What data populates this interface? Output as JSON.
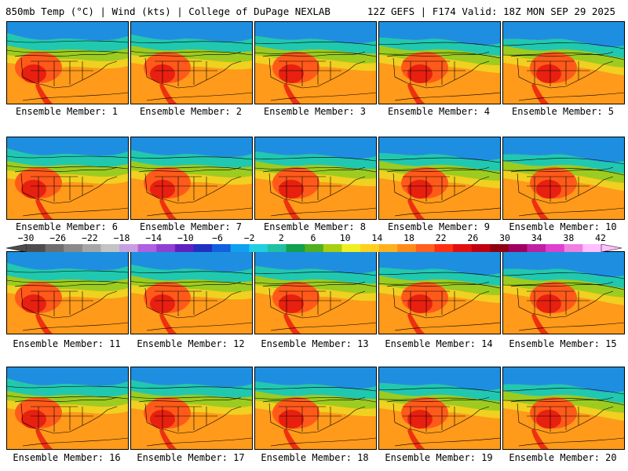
{
  "header": {
    "left": "850mb Temp (°C) | Wind (kts) | College of DuPage NEXLAB",
    "right": "12Z GEFS | F174 Valid: 18Z MON SEP 29 2025"
  },
  "label_prefix": "Ensemble Member: ",
  "members": [
    1,
    2,
    3,
    4,
    5,
    6,
    7,
    8,
    9,
    10,
    11,
    12,
    13,
    14,
    15,
    16,
    17,
    18,
    19,
    20
  ],
  "colorbar": {
    "ticks": [
      "−30",
      "−26",
      "−22",
      "−18",
      "−14",
      "−10",
      "−6",
      "−2",
      "2",
      "6",
      "10",
      "14",
      "18",
      "22",
      "26",
      "30",
      "34",
      "38",
      "42"
    ],
    "colors": [
      "#4d4d4d",
      "#6e6e6e",
      "#8a8a8a",
      "#a6a6a6",
      "#c4c4c4",
      "#c8a0e0",
      "#b060e0",
      "#9040d0",
      "#6020c0",
      "#2030c0",
      "#1060e0",
      "#10a0f0",
      "#20d0e0",
      "#20c0a0",
      "#10a050",
      "#50b020",
      "#a8d010",
      "#f0f020",
      "#ffd020",
      "#ffb020",
      "#ff8a1a",
      "#ff6020",
      "#ff3010",
      "#e01010",
      "#c00010",
      "#900010",
      "#a00060",
      "#c020a0",
      "#e040d0",
      "#f080e0",
      "#ffc0ff"
    ]
  }
}
